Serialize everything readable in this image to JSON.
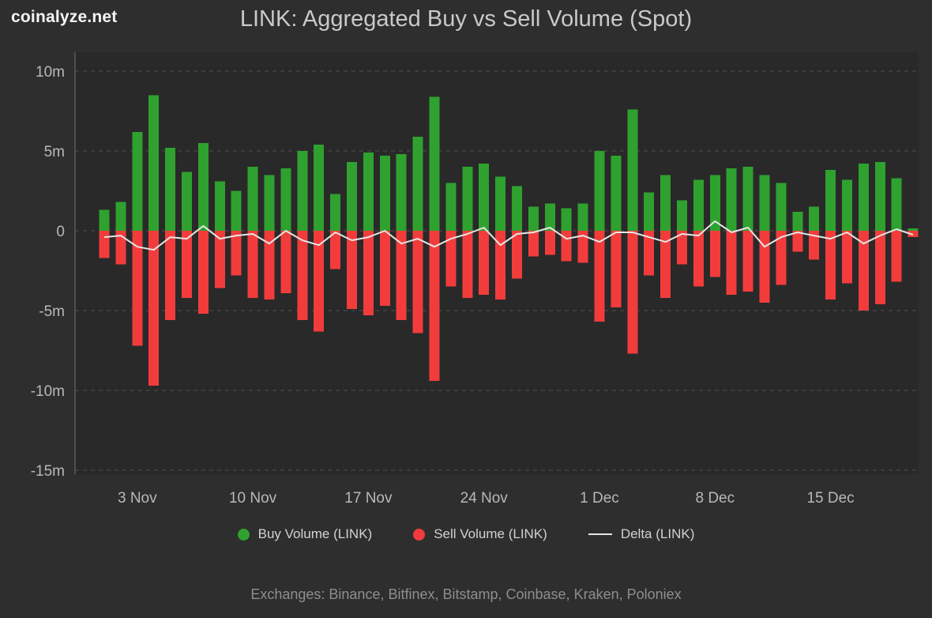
{
  "brand": {
    "logo": "coinalyze.net"
  },
  "header": {
    "title": "LINK: Aggregated Buy vs Sell Volume (Spot)"
  },
  "legend": {
    "buy_label": "Buy Volume (LINK)",
    "sell_label": "Sell Volume (LINK)",
    "delta_label": "Delta (LINK)"
  },
  "footer": {
    "exchanges": "Exchanges: Binance, Bitfinex, Bitstamp, Coinbase, Kraken, Poloniex"
  },
  "colors": {
    "buy": "#2fa12f",
    "sell": "#f23c3c",
    "delta": "#e6e6e6",
    "background": "#2e2e2e",
    "plot_background": "#292929",
    "grid": "#4f4f4f",
    "axis_line": "#707070",
    "axis_text": "#b8b8b8"
  },
  "chart_data": {
    "type": "bar",
    "title": "LINK: Aggregated Buy vs Sell Volume (Spot)",
    "unit": "millions",
    "ylim": [
      -15,
      10
    ],
    "grid": "dashed-horizontal",
    "legend_position": "bottom",
    "x": [
      "1 Nov",
      "2 Nov",
      "3 Nov",
      "4 Nov",
      "5 Nov",
      "6 Nov",
      "7 Nov",
      "8 Nov",
      "9 Nov",
      "10 Nov",
      "11 Nov",
      "12 Nov",
      "13 Nov",
      "14 Nov",
      "15 Nov",
      "16 Nov",
      "17 Nov",
      "18 Nov",
      "19 Nov",
      "20 Nov",
      "21 Nov",
      "22 Nov",
      "23 Nov",
      "24 Nov",
      "25 Nov",
      "26 Nov",
      "27 Nov",
      "28 Nov",
      "29 Nov",
      "30 Nov",
      "1 Dec",
      "2 Dec",
      "3 Dec",
      "4 Dec",
      "5 Dec",
      "6 Dec",
      "7 Dec",
      "8 Dec",
      "9 Dec",
      "10 Dec",
      "11 Dec",
      "12 Dec",
      "13 Dec",
      "14 Dec",
      "15 Dec",
      "16 Dec",
      "17 Dec",
      "18 Dec",
      "19 Dec",
      "20 Dec"
    ],
    "series": [
      {
        "name": "Buy Volume (LINK)",
        "type": "bar",
        "color": "#2fa12f",
        "values": [
          1.3,
          1.8,
          6.2,
          8.5,
          5.2,
          3.7,
          5.5,
          3.1,
          2.5,
          4.0,
          3.5,
          3.9,
          5.0,
          5.4,
          2.3,
          4.3,
          4.9,
          4.7,
          4.8,
          5.9,
          8.4,
          3.0,
          4.0,
          4.2,
          3.4,
          2.8,
          1.5,
          1.7,
          1.4,
          1.7,
          5.0,
          4.7,
          7.6,
          2.4,
          3.5,
          1.9,
          3.2,
          3.5,
          3.9,
          4.0,
          3.5,
          3.0,
          1.2,
          1.5,
          3.8,
          3.2,
          4.2,
          4.3,
          3.3,
          0.15
        ]
      },
      {
        "name": "Sell Volume (LINK)",
        "type": "bar",
        "color": "#f23c3c",
        "values": [
          -1.7,
          -2.1,
          -7.2,
          -9.7,
          -5.6,
          -4.2,
          -5.2,
          -3.6,
          -2.8,
          -4.2,
          -4.3,
          -3.9,
          -5.6,
          -6.3,
          -2.4,
          -4.9,
          -5.3,
          -4.7,
          -5.6,
          -6.4,
          -9.4,
          -3.5,
          -4.2,
          -4.0,
          -4.3,
          -3.0,
          -1.6,
          -1.5,
          -1.9,
          -2.0,
          -5.7,
          -4.8,
          -7.7,
          -2.8,
          -4.2,
          -2.1,
          -3.5,
          -2.9,
          -4.0,
          -3.8,
          -4.5,
          -3.4,
          -1.3,
          -1.8,
          -4.3,
          -3.3,
          -5.0,
          -4.6,
          -3.2,
          -0.4
        ]
      },
      {
        "name": "Delta (LINK)",
        "type": "line",
        "color": "#e6e6e6",
        "values": [
          -0.4,
          -0.3,
          -1.0,
          -1.2,
          -0.4,
          -0.5,
          0.3,
          -0.5,
          -0.3,
          -0.2,
          -0.8,
          0.0,
          -0.6,
          -0.9,
          -0.1,
          -0.6,
          -0.4,
          0.0,
          -0.8,
          -0.5,
          -1.0,
          -0.5,
          -0.2,
          0.2,
          -0.9,
          -0.2,
          -0.1,
          0.2,
          -0.5,
          -0.3,
          -0.7,
          -0.1,
          -0.1,
          -0.4,
          -0.7,
          -0.2,
          -0.3,
          0.6,
          -0.1,
          0.2,
          -1.0,
          -0.4,
          -0.1,
          -0.3,
          -0.5,
          -0.1,
          -0.8,
          -0.3,
          0.1,
          -0.25
        ]
      }
    ],
    "y_ticks": [
      {
        "value": 10,
        "label": "10m"
      },
      {
        "value": 5,
        "label": "5m"
      },
      {
        "value": 0,
        "label": "0"
      },
      {
        "value": -5,
        "label": "-5m"
      },
      {
        "value": -10,
        "label": "-10m"
      },
      {
        "value": -15,
        "label": "-15m"
      }
    ],
    "x_tick_indices": [
      2,
      9,
      16,
      23,
      30,
      37,
      44
    ],
    "x_tick_labels": [
      "3 Nov",
      "10 Nov",
      "17 Nov",
      "24 Nov",
      "1 Dec",
      "8 Dec",
      "15 Dec"
    ]
  }
}
